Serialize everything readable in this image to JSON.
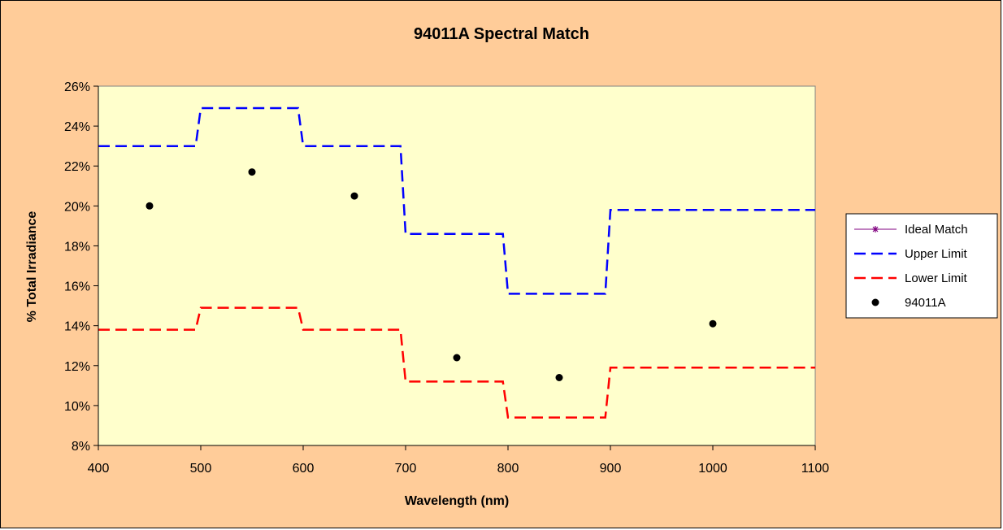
{
  "colors": {
    "background": "#ffcc99",
    "plot_area": "#ffffcc",
    "upper": "#0000ff",
    "lower": "#ff0000",
    "ideal": "#800080",
    "points": "#000000"
  },
  "chart_data": {
    "type": "line",
    "title": "94011A Spectral Match",
    "xlabel": "Wavelength (nm)",
    "ylabel": "% Total Irradiance",
    "xlim": [
      400,
      1100
    ],
    "ylim": [
      8,
      26
    ],
    "x_ticks": [
      "400",
      "500",
      "600",
      "700",
      "800",
      "900",
      "1000",
      "1100"
    ],
    "y_ticks": [
      "8%",
      "10%",
      "12%",
      "14%",
      "16%",
      "18%",
      "20%",
      "22%",
      "24%",
      "26%"
    ],
    "grid": false,
    "legend_position": "right",
    "series": [
      {
        "name": "Ideal Match",
        "style": "line-star",
        "x": [],
        "y": []
      },
      {
        "name": "Upper Limit",
        "style": "dashed",
        "x": [
          400,
          495,
          500,
          595,
          600,
          695,
          700,
          795,
          800,
          895,
          900,
          1100
        ],
        "y": [
          23.0,
          23.0,
          24.9,
          24.9,
          23.0,
          23.0,
          18.6,
          18.6,
          15.6,
          15.6,
          19.8,
          19.8
        ]
      },
      {
        "name": "Lower Limit",
        "style": "dashed",
        "x": [
          400,
          495,
          500,
          595,
          600,
          695,
          700,
          795,
          800,
          895,
          900,
          1100
        ],
        "y": [
          13.8,
          13.8,
          14.9,
          14.9,
          13.8,
          13.8,
          11.2,
          11.2,
          9.4,
          9.4,
          11.9,
          11.9
        ]
      },
      {
        "name": "94011A",
        "style": "dot",
        "x": [
          450,
          550,
          650,
          750,
          850,
          1000
        ],
        "y": [
          20.0,
          21.7,
          20.5,
          12.4,
          11.4,
          14.1
        ]
      }
    ]
  }
}
